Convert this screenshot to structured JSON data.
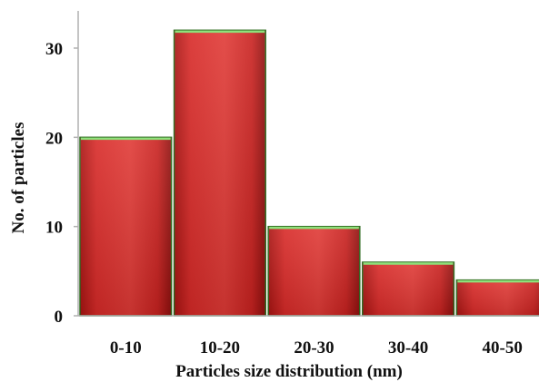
{
  "chart_data": {
    "type": "bar",
    "title": "",
    "xlabel": "Particles size distribution (nm)",
    "ylabel": "No. of particles",
    "categories": [
      "0-10",
      "10-20",
      "20-30",
      "30-40",
      "40-50"
    ],
    "values": [
      20,
      32,
      10,
      6,
      4
    ],
    "yticks": [
      "0",
      "10",
      "20",
      "30"
    ],
    "ylim": [
      0,
      35
    ],
    "grid": false,
    "legend": "none",
    "colors": {
      "bar_fill": "#d82a28",
      "bar_edge": "#2e6b1e",
      "bar_top_highlight": "#8ee07a",
      "axis": "#b0b0b0"
    }
  }
}
